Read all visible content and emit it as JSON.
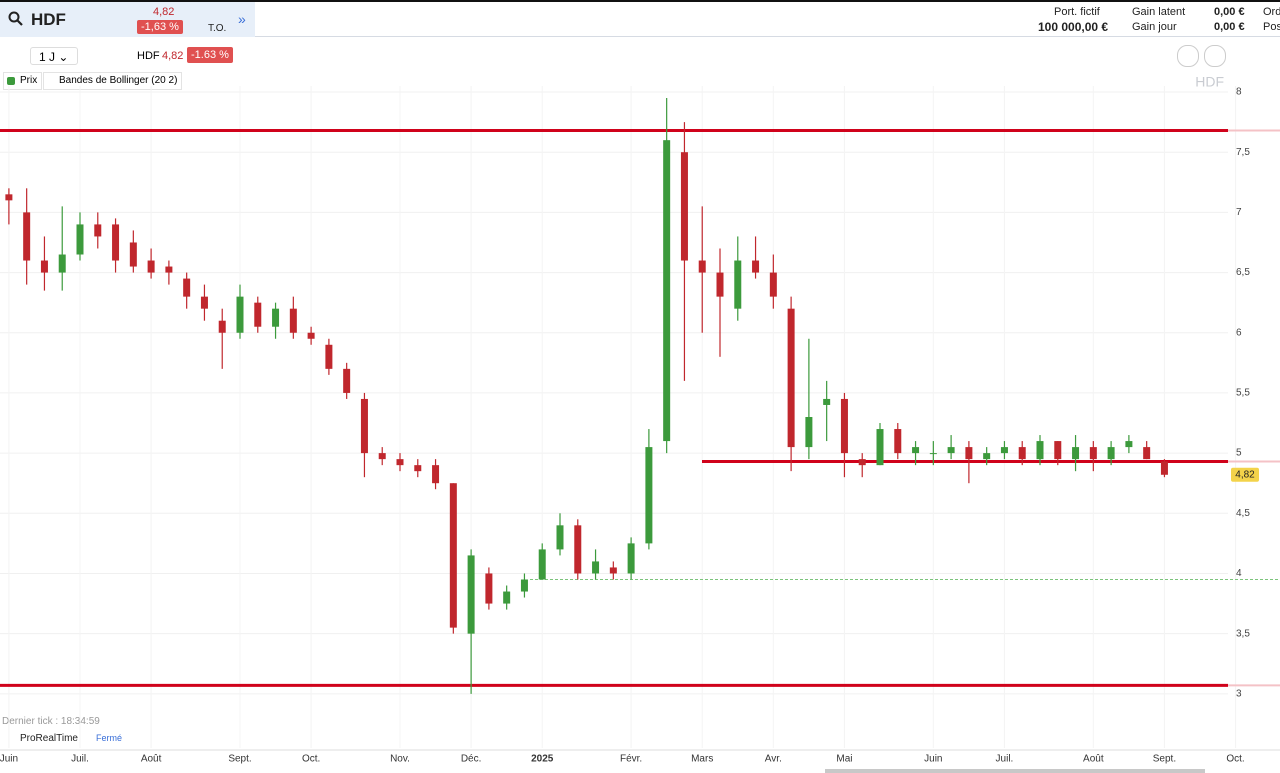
{
  "header": {
    "symbol": "HDF",
    "price": "4,82",
    "change": "-1,63 %",
    "to": "T.O.",
    "portfolio_label": "Port. fictif",
    "portfolio_value": "100 000,00 €",
    "gain_latent_label": "Gain latent",
    "gain_latent": "0,00 €",
    "gain_jour_label": "Gain jour",
    "gain_jour": "0,00 €",
    "ord": "Ord",
    "pos": "Pos"
  },
  "toolbar": {
    "interval": "1 J",
    "symbol": "HDF",
    "price": "4,82",
    "change": "-1.63 %",
    "legend_price": "Prix",
    "legend_bollinger": "Bandes de Bollinger (20 2)"
  },
  "footer": {
    "last_tick": "Dernier tick : 18:34:59",
    "brand": "ProRealTime",
    "status": "Fermé"
  },
  "chart_data": {
    "type": "candlestick",
    "watermark": "HDF",
    "categories": [
      "Juin",
      null,
      null,
      null,
      "Juil.",
      null,
      null,
      null,
      "Août",
      null,
      null,
      null,
      null,
      "Sept.",
      null,
      null,
      null,
      "Oct.",
      null,
      null,
      null,
      null,
      "Nov.",
      null,
      null,
      null,
      "Déc.",
      null,
      null,
      null,
      "2025",
      null,
      null,
      null,
      null,
      "Févr.",
      null,
      null,
      null,
      "Mars",
      null,
      null,
      null,
      "Avr.",
      null,
      null,
      null,
      "Mai",
      null,
      null,
      null,
      null,
      "Juin",
      null,
      null,
      null,
      "Juil.",
      null,
      null,
      null,
      null,
      "Août",
      null,
      null,
      null,
      "Sept.",
      null,
      null,
      null,
      "Oct.",
      null,
      null
    ],
    "open": [
      7.15,
      7.0,
      6.6,
      6.5,
      6.65,
      6.9,
      6.9,
      6.75,
      6.6,
      6.55,
      6.45,
      6.3,
      6.1,
      6.0,
      6.25,
      6.05,
      6.2,
      6.0,
      5.9,
      5.7,
      5.45,
      5.0,
      4.95,
      4.9,
      4.9,
      4.75,
      3.5,
      4.0,
      3.75,
      3.85,
      3.95,
      4.2,
      4.4,
      4.0,
      4.05,
      4.0,
      4.25,
      5.1,
      7.5,
      6.6,
      6.5,
      6.2,
      6.6,
      6.5,
      6.2,
      5.05,
      5.4,
      5.45,
      4.95,
      4.9,
      5.2,
      5.0,
      5.0,
      5.0,
      5.05,
      4.95,
      5.0,
      5.05,
      4.95,
      5.1,
      4.95,
      5.05,
      4.95,
      5.05,
      5.05,
      4.93,
      null,
      null,
      null,
      null,
      null,
      null
    ],
    "high": [
      7.2,
      7.2,
      6.8,
      7.05,
      7.0,
      7.0,
      6.95,
      6.85,
      6.7,
      6.6,
      6.5,
      6.4,
      6.2,
      6.4,
      6.3,
      6.25,
      6.3,
      6.05,
      5.95,
      5.75,
      5.5,
      5.05,
      5.0,
      4.95,
      4.95,
      4.75,
      4.2,
      4.05,
      3.9,
      4.0,
      4.25,
      4.5,
      4.45,
      4.2,
      4.1,
      4.3,
      5.2,
      7.95,
      7.75,
      7.05,
      6.7,
      6.8,
      6.8,
      6.65,
      6.3,
      5.95,
      5.6,
      5.5,
      5.0,
      5.25,
      5.25,
      5.1,
      5.1,
      5.15,
      5.1,
      5.05,
      5.1,
      5.1,
      5.15,
      5.1,
      5.15,
      5.1,
      5.1,
      5.15,
      5.1,
      4.95,
      null,
      null,
      null,
      null,
      null,
      null
    ],
    "low": [
      6.9,
      6.4,
      6.35,
      6.35,
      6.6,
      6.7,
      6.5,
      6.5,
      6.45,
      6.4,
      6.2,
      6.1,
      5.7,
      5.95,
      6.0,
      5.95,
      5.95,
      5.9,
      5.65,
      5.45,
      4.8,
      4.9,
      4.85,
      4.8,
      4.7,
      3.5,
      3.0,
      3.7,
      3.7,
      3.8,
      3.95,
      4.15,
      3.95,
      3.95,
      3.95,
      3.95,
      4.2,
      5.0,
      5.6,
      6.0,
      5.8,
      6.1,
      6.45,
      6.2,
      4.85,
      4.95,
      5.1,
      4.8,
      4.8,
      4.9,
      4.95,
      4.9,
      4.9,
      4.95,
      4.75,
      4.9,
      4.95,
      4.9,
      4.9,
      4.9,
      4.85,
      4.85,
      4.9,
      5.0,
      4.95,
      4.8,
      null,
      null,
      null,
      null,
      null,
      null
    ],
    "close": [
      7.1,
      6.6,
      6.5,
      6.65,
      6.9,
      6.8,
      6.6,
      6.55,
      6.5,
      6.5,
      6.3,
      6.2,
      6.0,
      6.3,
      6.05,
      6.2,
      6.0,
      5.95,
      5.7,
      5.5,
      5.0,
      4.95,
      4.9,
      4.85,
      4.75,
      3.55,
      4.15,
      3.75,
      3.85,
      3.95,
      4.2,
      4.4,
      4.0,
      4.1,
      4.0,
      4.25,
      5.05,
      7.6,
      6.6,
      6.5,
      6.3,
      6.6,
      6.5,
      6.3,
      5.05,
      5.3,
      5.45,
      5.0,
      4.9,
      5.2,
      5.0,
      5.05,
      5.0,
      5.05,
      4.95,
      5.0,
      5.05,
      4.95,
      5.1,
      4.95,
      5.05,
      4.95,
      5.05,
      5.1,
      4.95,
      4.82,
      null,
      null,
      null,
      null,
      null,
      null
    ],
    "up_color": "#3c9a3c",
    "down_color": "#c0272d",
    "ylim": [
      2.55,
      8.05
    ],
    "yticks": [
      3,
      {
        "value": 3.5,
        "label": "3,5"
      },
      4,
      {
        "value": 4.5,
        "label": "4,5"
      },
      5,
      {
        "value": 5.5,
        "label": "5,5"
      },
      6,
      {
        "value": 6.5,
        "label": "6,5"
      },
      7,
      {
        "value": 7.5,
        "label": "7,5"
      },
      8
    ],
    "grid": true,
    "hlines": [
      {
        "value": 7.68,
        "color": "#d0021b"
      },
      {
        "value": 4.93,
        "color": "#d0021b"
      },
      {
        "value": 3.07,
        "color": "#d0021b"
      }
    ],
    "dashed_line": {
      "value": 3.95,
      "color": "#7cc47c"
    },
    "last_price": {
      "value": 4.82,
      "label": "4,82"
    }
  }
}
